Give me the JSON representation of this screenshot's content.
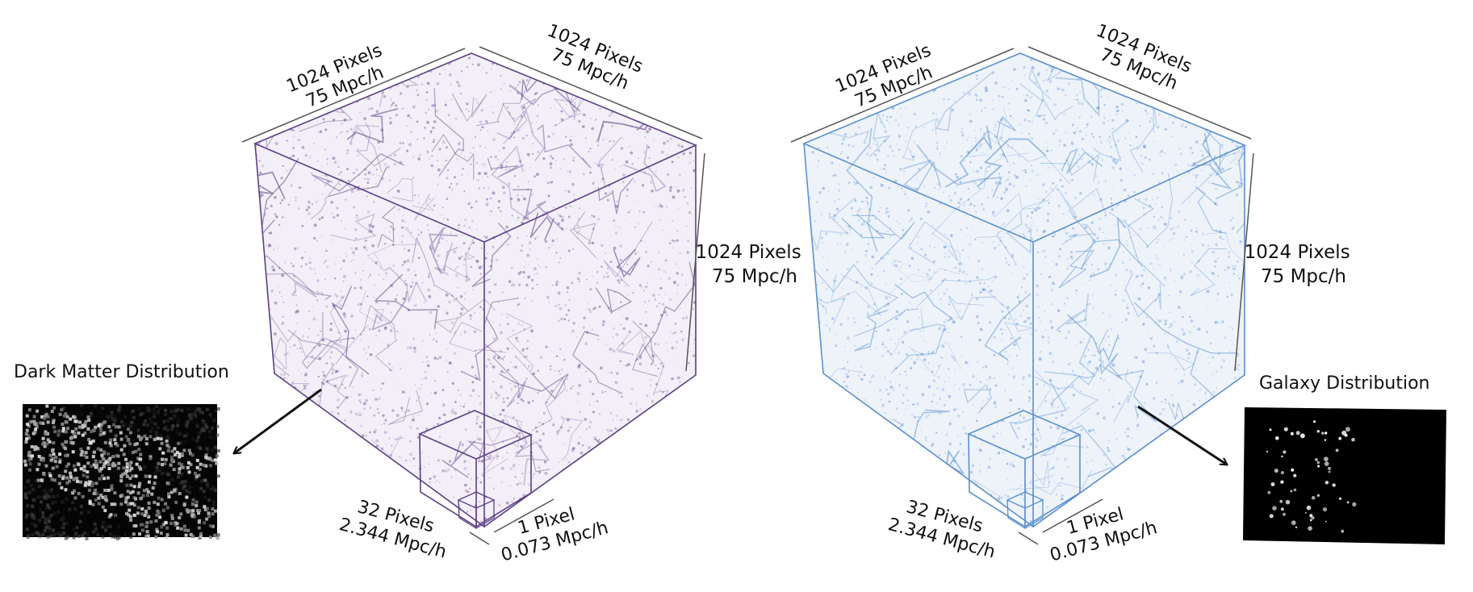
{
  "left_panel": {
    "point_color": "#5b3f86",
    "inset_title": "Dark Matter Distribution",
    "labels": {
      "top_left": [
        "1024 Pixels",
        "75 Mpc/h"
      ],
      "top_right": [
        "1024 Pixels",
        "75 Mpc/h"
      ],
      "right": [
        "1024 Pixels",
        "75 Mpc/h"
      ],
      "sub": [
        "32 Pixels",
        "2.344 Mpc/h"
      ],
      "pixel": [
        "1 Pixel",
        "0.073 Mpc/h"
      ]
    }
  },
  "right_panel": {
    "point_color": "#5b8fd0",
    "inset_title": "Galaxy Distribution",
    "labels": {
      "top_left": [
        "1024 Pixels",
        "75 Mpc/h"
      ],
      "top_right": [
        "1024 Pixels",
        "75 Mpc/h"
      ],
      "right": [
        "1024 Pixels",
        "75 Mpc/h"
      ],
      "sub": [
        "32 Pixels",
        "2.344 Mpc/h"
      ],
      "pixel": [
        "1 Pixel",
        "0.073 Mpc/h"
      ]
    }
  }
}
